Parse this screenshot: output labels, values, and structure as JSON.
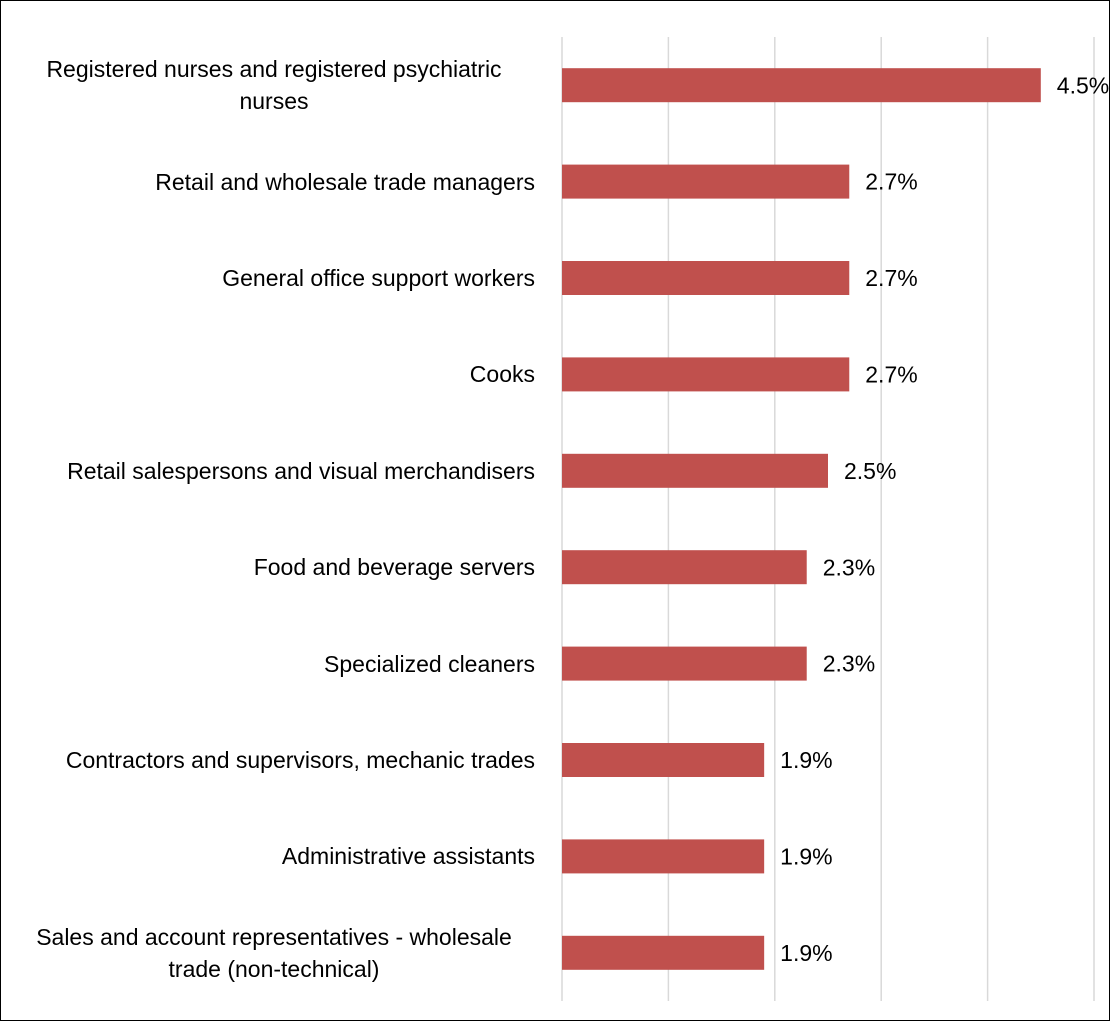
{
  "chart_data": {
    "type": "hbar",
    "categories": [
      "Registered nurses and registered psychiatric nurses",
      "Retail and wholesale trade managers",
      "General office support workers",
      "Cooks",
      "Retail salespersons and visual merchandisers",
      "Food and beverage servers",
      "Specialized cleaners",
      "Contractors and supervisors, mechanic trades",
      "Administrative assistants",
      "Sales and account representatives - wholesale trade (non-technical)"
    ],
    "values": [
      4.5,
      2.7,
      2.7,
      2.7,
      2.5,
      2.3,
      2.3,
      1.9,
      1.9,
      1.9
    ],
    "value_labels": [
      "4.5%",
      "2.7%",
      "2.7%",
      "2.7%",
      "2.5%",
      "2.3%",
      "2.3%",
      "1.9%",
      "1.9%",
      "1.9%"
    ],
    "color": "#c0504d",
    "xlim": [
      0,
      5
    ],
    "xticks": [
      0,
      1,
      2,
      3,
      4,
      5
    ],
    "grid": true
  }
}
